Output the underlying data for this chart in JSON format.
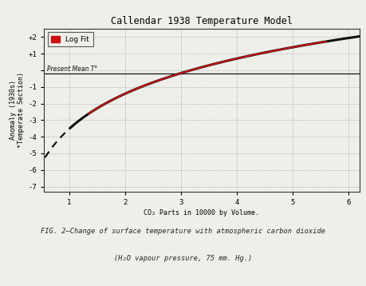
{
  "title": "Callendar 1938 Temperature Model",
  "xlabel": "CO₂ Parts in 10000 by Volume.",
  "ylabel": "Anomaly (1930s)\n*Temperate Section)",
  "xlim": [
    0.55,
    6.2
  ],
  "ylim": [
    -7.3,
    2.5
  ],
  "yticks": [
    -7,
    -6,
    -5,
    -4,
    -3,
    -2,
    -1,
    0,
    1,
    2
  ],
  "ytick_labels": [
    "-7",
    "-6",
    "-5",
    "-4",
    "-3",
    "-2",
    "-1",
    "",
    "+1",
    "+2"
  ],
  "xticks": [
    1,
    2,
    3,
    4,
    5,
    6
  ],
  "present_mean_y": -0.18,
  "log_a": 3.05,
  "co2_ref": 3.0,
  "x_curve_start": 0.57,
  "x_curve_end": 6.2,
  "x_red_start": 1.35,
  "x_red_end": 5.6,
  "dashed_x_end": 1.02,
  "background_color": "#efefea",
  "curve_color": "#111111",
  "red_color": "#cc1111",
  "mean_line_color": "#111111",
  "grid_color": "#999999",
  "title_fontsize": 8.5,
  "axis_label_fontsize": 6,
  "tick_fontsize": 6.5,
  "legend_label": "Log Fit",
  "present_mean_label": "Present Mean T°",
  "caption_line1": "FIG. 2—Change of surface temperature with atmospheric carbon dioxide",
  "caption_line2": "(H₂O vapour pressure, 75 mm. Hg.)"
}
